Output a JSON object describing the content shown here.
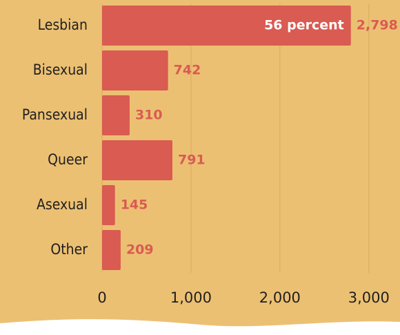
{
  "chart_data": {
    "type": "bar",
    "orientation": "horizontal",
    "categories": [
      "Lesbian",
      "Bisexual",
      "Pansexual",
      "Queer",
      "Asexual",
      "Other"
    ],
    "values": [
      2798,
      742,
      310,
      791,
      145,
      209
    ],
    "value_labels": [
      "2,798",
      "742",
      "310",
      "791",
      "145",
      "209"
    ],
    "color": "#d95b52",
    "xlim": [
      0,
      3335
    ],
    "xticks": [
      0,
      {
        "value": 1000,
        "label": "1,000"
      },
      {
        "value": 2000,
        "label": "2,000"
      },
      {
        "value": 3000,
        "label": "3,000"
      }
    ],
    "grid": true,
    "annotations": [
      {
        "text": "56 percent",
        "category": 0
      }
    ]
  }
}
